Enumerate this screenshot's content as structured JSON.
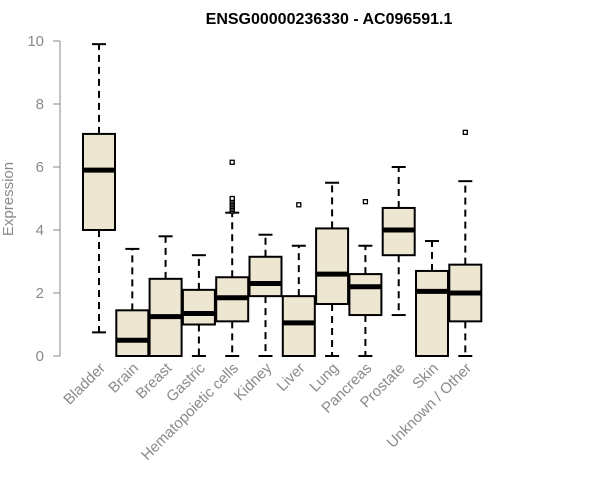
{
  "chart_data": {
    "type": "box",
    "title": "ENSG00000236330 - AC096591.1",
    "xlabel": "",
    "ylabel": "Expression",
    "ylim": [
      0,
      10
    ],
    "yticks": [
      0,
      2,
      4,
      6,
      8,
      10
    ],
    "grid": false,
    "legend": "none",
    "colors": {
      "box_fill": "#ede7d1",
      "box_stroke": "#000000",
      "median": "#000000",
      "axis_text": "#8a8a8a",
      "axis_line": "#8a8a8a",
      "title": "#000000"
    },
    "categories": [
      "Bladder",
      "Brain",
      "Breast",
      "Gastric",
      "Hematopoietic cells",
      "Kidney",
      "Liver",
      "Lung",
      "Pancreas",
      "Prostate",
      "Skin",
      "Unknown / Other"
    ],
    "boxes": [
      {
        "whisker_low": 0.75,
        "q1": 4.0,
        "median": 5.9,
        "q3": 7.05,
        "whisker_high": 9.9,
        "outliers": []
      },
      {
        "whisker_low": 0.0,
        "q1": 0.0,
        "median": 0.5,
        "q3": 1.45,
        "whisker_high": 3.4,
        "outliers": []
      },
      {
        "whisker_low": 0.0,
        "q1": 0.0,
        "median": 1.25,
        "q3": 2.45,
        "whisker_high": 3.8,
        "outliers": []
      },
      {
        "whisker_low": 0.0,
        "q1": 1.0,
        "median": 1.35,
        "q3": 2.1,
        "whisker_high": 3.2,
        "outliers": []
      },
      {
        "whisker_low": 0.0,
        "q1": 1.1,
        "median": 1.85,
        "q3": 2.5,
        "whisker_high": 4.55,
        "outliers": [
          4.6,
          4.65,
          4.7,
          4.75,
          4.8,
          4.85,
          4.9,
          4.95,
          5.0,
          6.15
        ]
      },
      {
        "whisker_low": 0.0,
        "q1": 1.9,
        "median": 2.3,
        "q3": 3.15,
        "whisker_high": 3.85,
        "outliers": []
      },
      {
        "whisker_low": 0.0,
        "q1": 0.0,
        "median": 1.05,
        "q3": 1.9,
        "whisker_high": 3.5,
        "outliers": [
          4.8
        ]
      },
      {
        "whisker_low": 0.0,
        "q1": 1.65,
        "median": 2.6,
        "q3": 4.05,
        "whisker_high": 5.5,
        "outliers": []
      },
      {
        "whisker_low": 0.0,
        "q1": 1.3,
        "median": 2.2,
        "q3": 2.6,
        "whisker_high": 3.5,
        "outliers": [
          4.9
        ]
      },
      {
        "whisker_low": 1.3,
        "q1": 3.2,
        "median": 4.0,
        "q3": 4.7,
        "whisker_high": 6.0,
        "outliers": []
      },
      {
        "whisker_low": 0.0,
        "q1": 0.0,
        "median": 2.05,
        "q3": 2.7,
        "whisker_high": 3.65,
        "outliers": []
      },
      {
        "whisker_low": 0.0,
        "q1": 1.1,
        "median": 2.0,
        "q3": 2.9,
        "whisker_high": 5.55,
        "outliers": [
          7.1
        ]
      }
    ]
  }
}
